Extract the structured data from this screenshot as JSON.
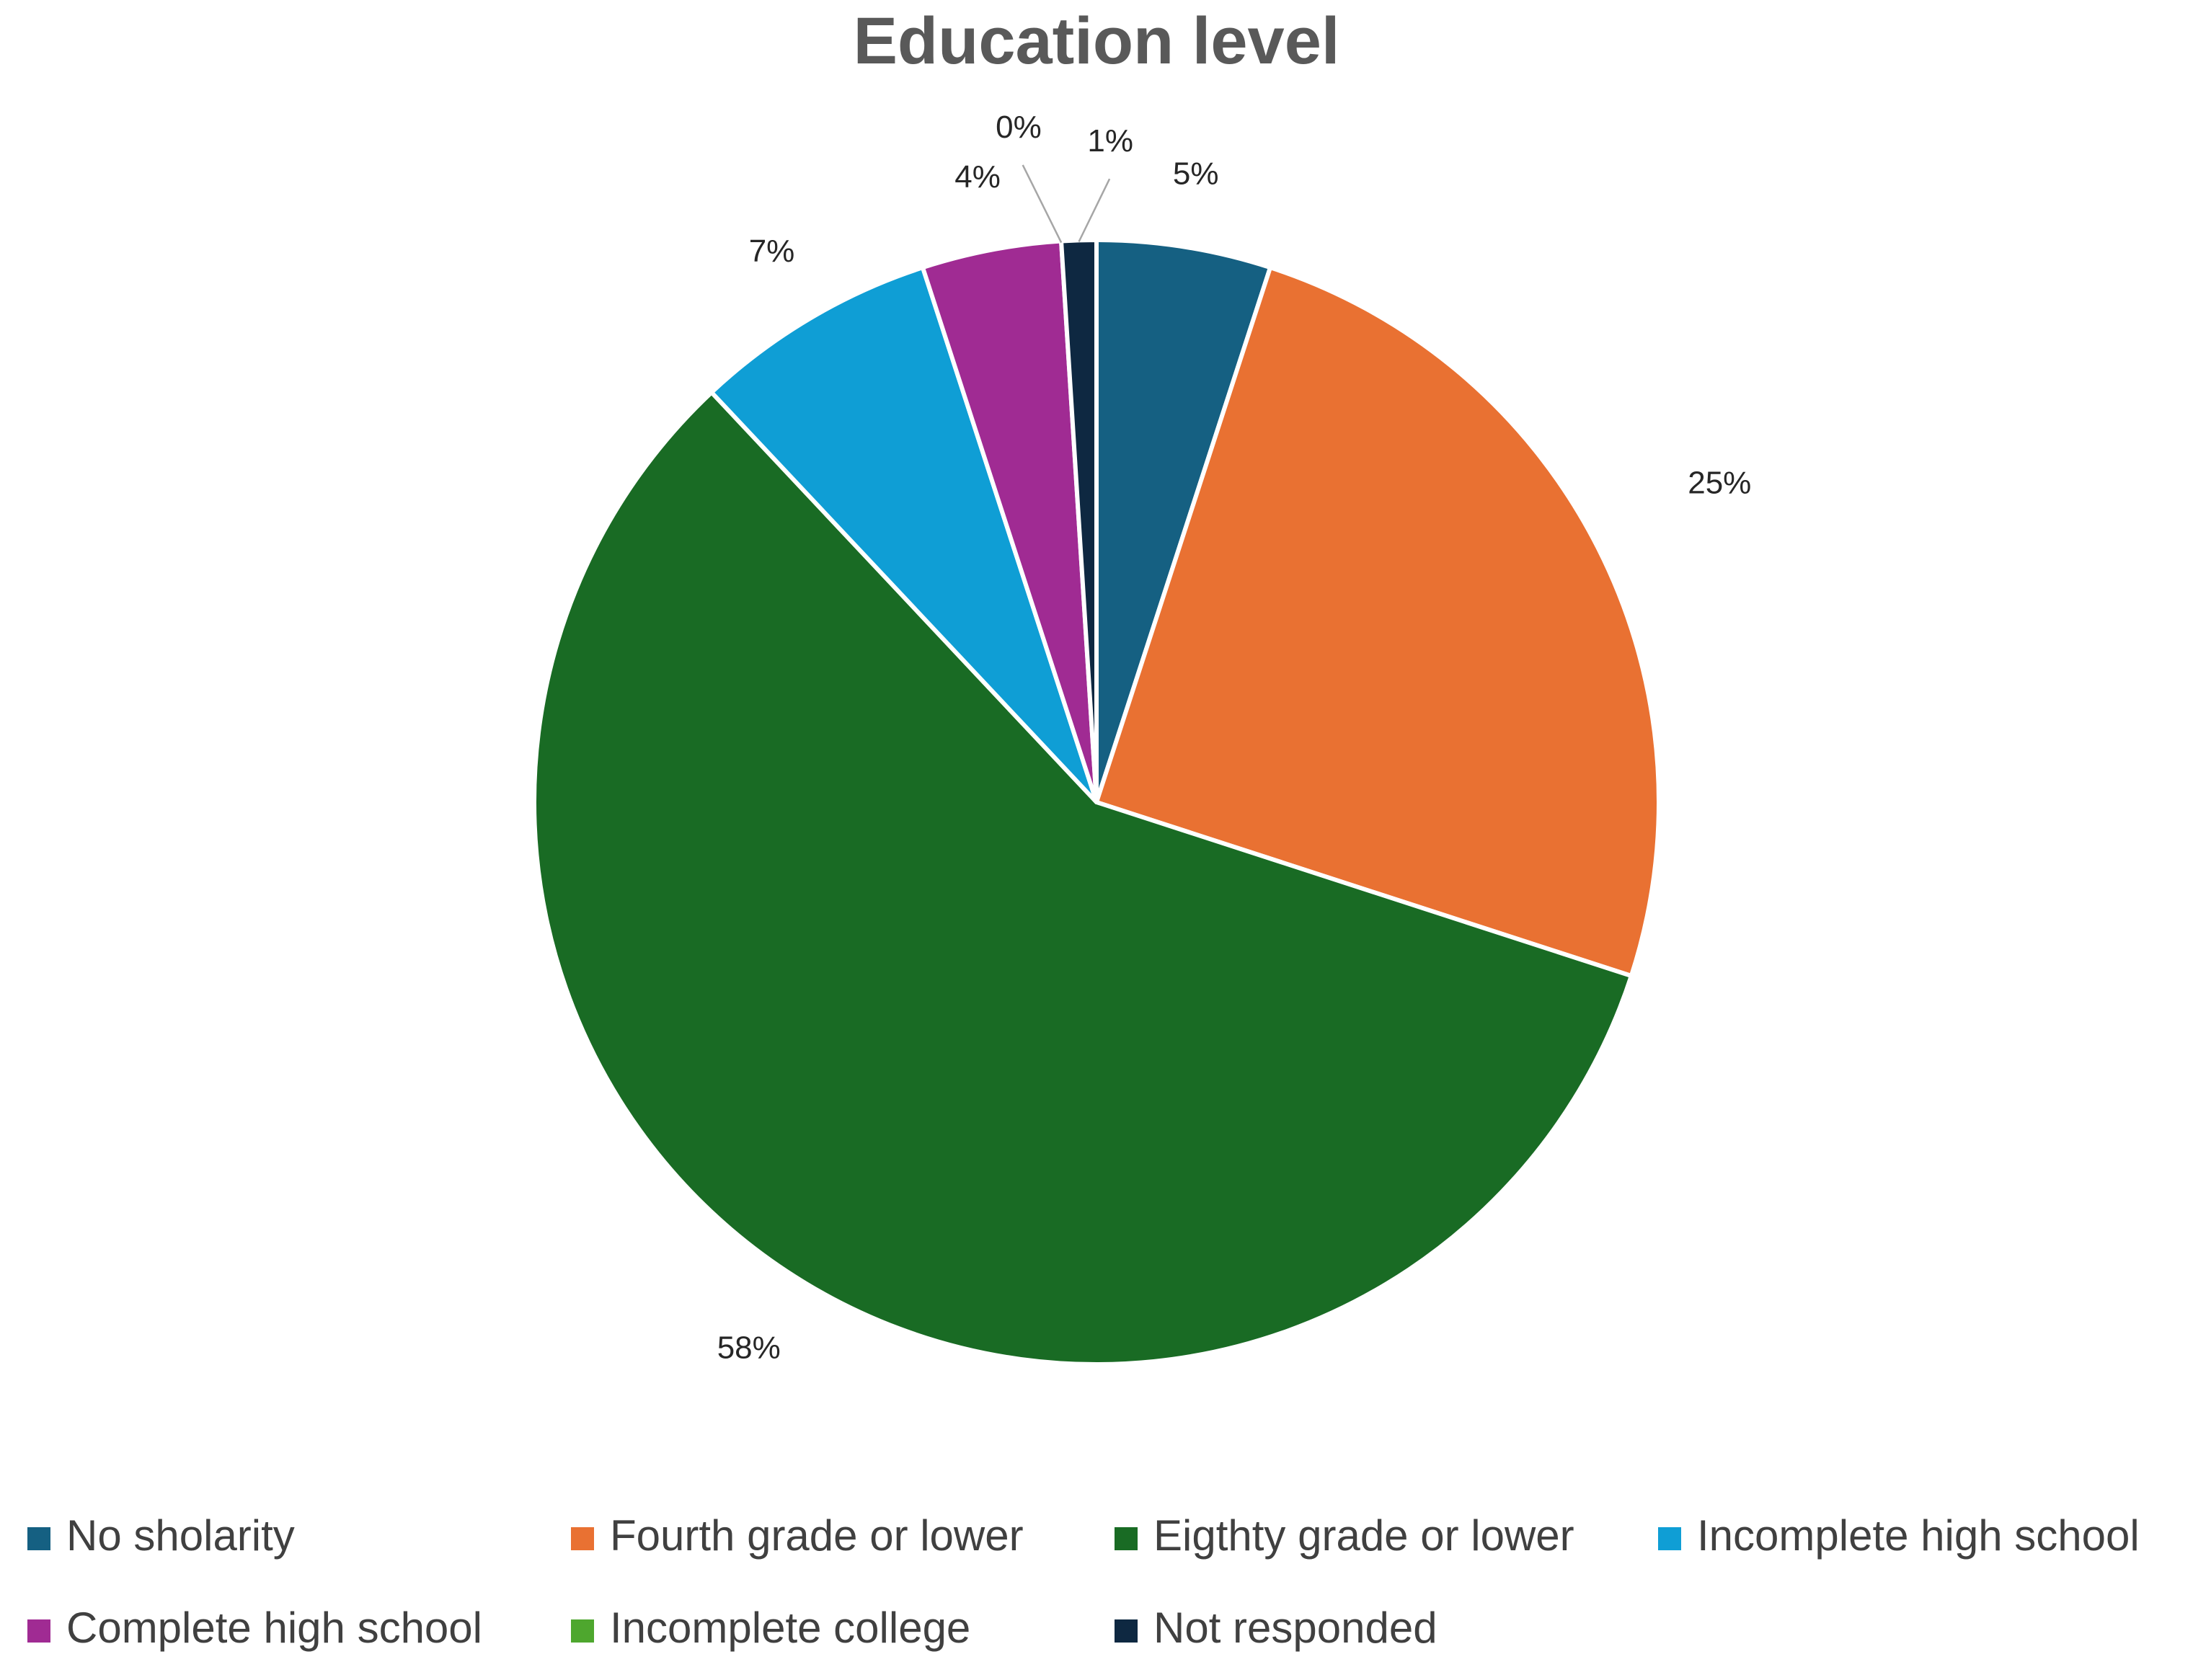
{
  "chart_data": {
    "type": "pie",
    "title": "Education level",
    "categories": [
      "No sholarity",
      "Fourth grade or lower",
      "Eigthty grade or lower",
      "Incomplete high school",
      "Complete high school",
      "Incomplete college",
      "Not responded"
    ],
    "values": [
      5,
      25,
      58,
      7,
      4,
      0,
      1
    ],
    "value_labels": [
      "5%",
      "25%",
      "58%",
      "7%",
      "4%",
      "0%",
      "1%"
    ],
    "colors": [
      "#156082",
      "#E97132",
      "#196B24",
      "#0F9ED5",
      "#A02B93",
      "#4EA72E",
      "#0E2841"
    ],
    "start_angle_deg": 0,
    "direction": "clockwise",
    "legend_position": "bottom"
  }
}
